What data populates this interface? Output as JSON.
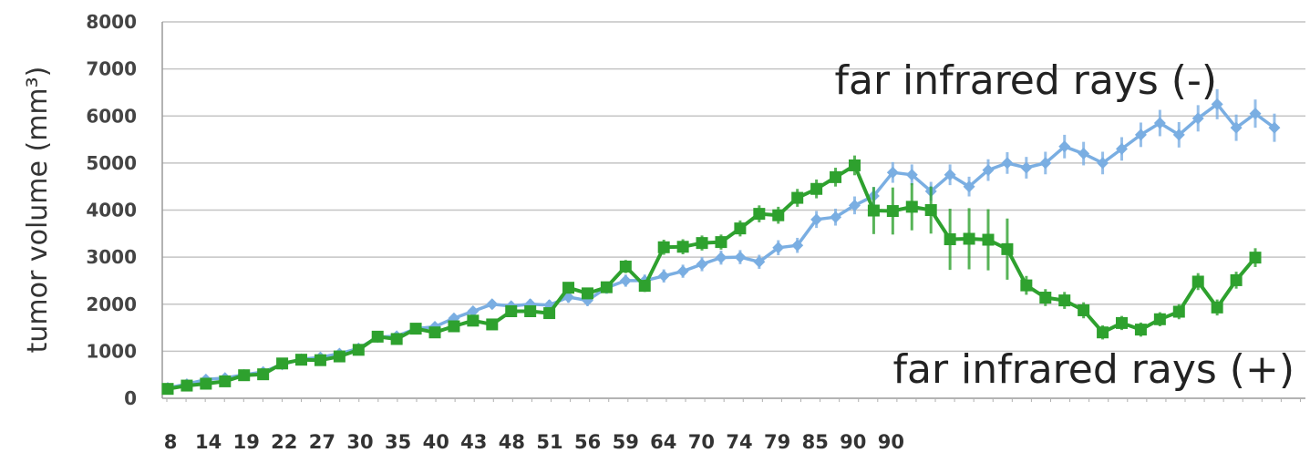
{
  "chart_data": {
    "type": "line",
    "title": "",
    "xlabel": "",
    "ylabel": "tumor volume (mm³)",
    "ylim": [
      0,
      8000
    ],
    "yticks": [
      0,
      1000,
      2000,
      3000,
      4000,
      5000,
      6000,
      7000,
      8000
    ],
    "y_tick_labels": [
      "0",
      "1000",
      "2000",
      "3000",
      "4000",
      "5000",
      "6000",
      "7000",
      "8000"
    ],
    "grid": true,
    "legend": "none",
    "x_tick_labels": [
      "8",
      "14",
      "19",
      "22",
      "27",
      "30",
      "35",
      "40",
      "43",
      "48",
      "51",
      "56",
      "59",
      "64",
      "70",
      "74",
      "79",
      "85",
      "90",
      "90"
    ],
    "annotations": [
      "far infrared rays (-)",
      "far infrared rays (+)"
    ],
    "series": [
      {
        "label_ref": 0,
        "color": "#7aaee2",
        "marker": "diamond",
        "values": [
          220,
          300,
          400,
          430,
          500,
          560,
          720,
          830,
          870,
          950,
          1060,
          1300,
          1320,
          1480,
          1520,
          1700,
          1850,
          2000,
          1960,
          2000,
          1980,
          2150,
          2080,
          2350,
          2500,
          2500,
          2600,
          2700,
          2850,
          2990,
          3000,
          2900,
          3200,
          3250,
          3800,
          3850,
          4100,
          4300,
          4800,
          4750,
          4400,
          4750,
          4500,
          4850,
          5000,
          4900,
          5000,
          5350,
          5200,
          5000,
          5300,
          5600,
          5850,
          5600,
          5950,
          6250,
          5750,
          6050,
          5750
        ],
        "error": [
          40,
          40,
          40,
          40,
          40,
          50,
          50,
          60,
          60,
          60,
          70,
          80,
          80,
          90,
          90,
          100,
          100,
          100,
          100,
          110,
          110,
          120,
          120,
          130,
          130,
          130,
          140,
          140,
          150,
          150,
          150,
          150,
          160,
          160,
          180,
          180,
          190,
          190,
          220,
          220,
          200,
          220,
          210,
          230,
          230,
          230,
          240,
          250,
          250,
          240,
          250,
          260,
          280,
          270,
          280,
          320,
          280,
          300,
          300
        ]
      },
      {
        "label_ref": 1,
        "color": "#2ea12e",
        "marker": "square",
        "values": [
          200,
          270,
          310,
          360,
          490,
          510,
          740,
          820,
          810,
          890,
          1030,
          1310,
          1260,
          1480,
          1400,
          1530,
          1650,
          1570,
          1850,
          1850,
          1810,
          2350,
          2230,
          2360,
          2800,
          2390,
          3210,
          3220,
          3300,
          3320,
          3610,
          3920,
          3890,
          4260,
          4450,
          4700,
          4950,
          3990,
          3980,
          4070,
          4000,
          3380,
          3390,
          3370,
          3170,
          2400,
          2140,
          2080,
          1870,
          1400,
          1600,
          1460,
          1680,
          1840,
          2480,
          1930,
          2510,
          2990
        ],
        "error": [
          30,
          30,
          30,
          30,
          40,
          40,
          50,
          50,
          50,
          60,
          60,
          70,
          70,
          80,
          80,
          80,
          90,
          90,
          100,
          100,
          100,
          120,
          120,
          120,
          140,
          130,
          160,
          160,
          160,
          160,
          170,
          180,
          180,
          190,
          200,
          200,
          210,
          500,
          500,
          500,
          500,
          650,
          650,
          650,
          650,
          200,
          180,
          180,
          170,
          150,
          150,
          150,
          150,
          160,
          180,
          170,
          180,
          200
        ]
      }
    ]
  }
}
